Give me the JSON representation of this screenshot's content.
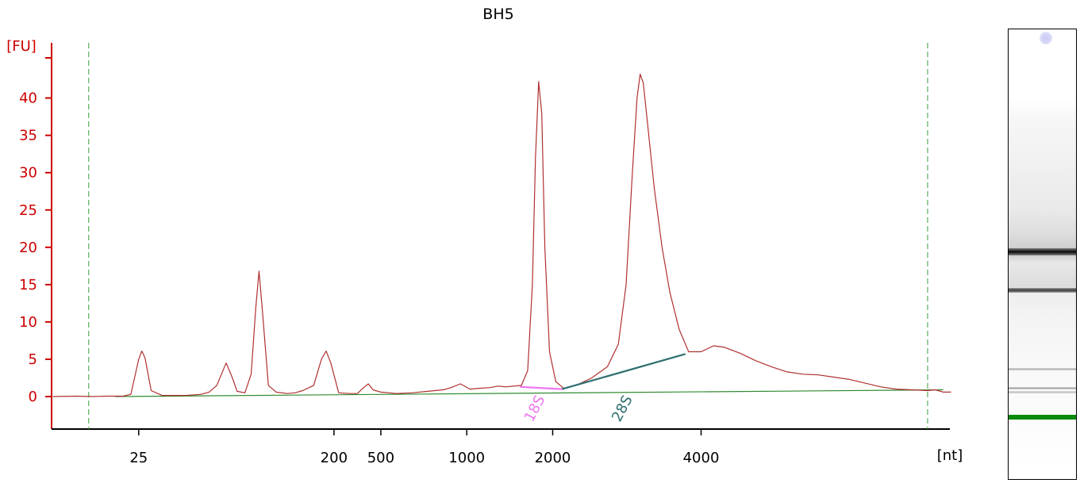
{
  "chart_data": {
    "type": "line",
    "title": "BH5",
    "ylabel": "[FU]",
    "xlabel": "[nt]",
    "ylim": [
      -4,
      48
    ],
    "y_ticks": [
      0,
      5,
      10,
      15,
      20,
      25,
      30,
      35,
      40
    ],
    "x_ticks": [
      {
        "label": "25",
        "t": 25
      },
      {
        "label": "200",
        "t": 37.5
      },
      {
        "label": "500",
        "t": 40.5
      },
      {
        "label": "1000",
        "t": 46
      },
      {
        "label": "2000",
        "t": 51.5
      },
      {
        "label": "4000",
        "t": 61
      }
    ],
    "xlim": [
      19.5,
      77
    ],
    "colors": {
      "trace": "#b03030",
      "axis": "#cc0000",
      "baseline": "#2e8b2e",
      "marker_lines": "#3a9a3a",
      "peak_18S": "#ee77ee",
      "peak_28S": "#2f7070",
      "lane_marker": "#0a8a0a"
    },
    "series": [
      {
        "values": [
          [
            19.5,
            0.0
          ],
          [
            21,
            0.05
          ],
          [
            22,
            0.0
          ],
          [
            23,
            0.05
          ],
          [
            24,
            0.05
          ],
          [
            24.5,
            0.3
          ],
          [
            25,
            5.0
          ],
          [
            25.2,
            6.1
          ],
          [
            25.4,
            5.2
          ],
          [
            25.8,
            0.8
          ],
          [
            26.5,
            0.15
          ],
          [
            28,
            0.15
          ],
          [
            29,
            0.3
          ],
          [
            29.5,
            0.6
          ],
          [
            30,
            1.5
          ],
          [
            30.3,
            3.0
          ],
          [
            30.6,
            4.5
          ],
          [
            31,
            2.5
          ],
          [
            31.3,
            0.7
          ],
          [
            31.8,
            0.5
          ],
          [
            32.2,
            3.0
          ],
          [
            32.5,
            12.0
          ],
          [
            32.7,
            16.8
          ],
          [
            32.9,
            12.0
          ],
          [
            33.3,
            1.5
          ],
          [
            33.8,
            0.6
          ],
          [
            34.5,
            0.4
          ],
          [
            35,
            0.5
          ],
          [
            35.5,
            0.8
          ],
          [
            36.2,
            1.5
          ],
          [
            36.7,
            5.0
          ],
          [
            37,
            6.1
          ],
          [
            37.3,
            4.5
          ],
          [
            37.8,
            0.5
          ],
          [
            38.5,
            0.4
          ],
          [
            39,
            0.4
          ],
          [
            39.4,
            1.2
          ],
          [
            39.7,
            1.7
          ],
          [
            40,
            0.9
          ],
          [
            40.5,
            0.6
          ],
          [
            41.5,
            0.4
          ],
          [
            42.5,
            0.5
          ],
          [
            43.5,
            0.7
          ],
          [
            44.5,
            0.9
          ],
          [
            45,
            1.2
          ],
          [
            45.6,
            1.7
          ],
          [
            46.2,
            1.0
          ],
          [
            46.8,
            1.1
          ],
          [
            47.5,
            1.2
          ],
          [
            48,
            1.4
          ],
          [
            48.5,
            1.3
          ],
          [
            49.5,
            1.5
          ],
          [
            49.9,
            3.5
          ],
          [
            50.2,
            15.0
          ],
          [
            50.4,
            32.0
          ],
          [
            50.6,
            42.2
          ],
          [
            50.8,
            38.0
          ],
          [
            51,
            20.0
          ],
          [
            51.3,
            6.0
          ],
          [
            51.7,
            2.0
          ],
          [
            52.2,
            1.1
          ],
          [
            53,
            1.5
          ],
          [
            54,
            2.5
          ],
          [
            55,
            4.0
          ],
          [
            55.7,
            7.0
          ],
          [
            56.2,
            15.0
          ],
          [
            56.6,
            30.0
          ],
          [
            56.9,
            40.0
          ],
          [
            57.1,
            43.2
          ],
          [
            57.3,
            42.0
          ],
          [
            57.6,
            36.0
          ],
          [
            58,
            28.0
          ],
          [
            58.5,
            20.0
          ],
          [
            59,
            14.0
          ],
          [
            59.6,
            9.0
          ],
          [
            60.2,
            6.0
          ],
          [
            61,
            6.0
          ],
          [
            61.8,
            6.8
          ],
          [
            62.5,
            6.6
          ],
          [
            63.5,
            5.8
          ],
          [
            64.5,
            4.8
          ],
          [
            65.5,
            4.0
          ],
          [
            66.5,
            3.3
          ],
          [
            67.5,
            3.0
          ],
          [
            68.5,
            2.9
          ],
          [
            69.5,
            2.6
          ],
          [
            70.5,
            2.3
          ],
          [
            71.5,
            1.8
          ],
          [
            72.5,
            1.3
          ],
          [
            73.5,
            1.0
          ],
          [
            74.5,
            0.9
          ],
          [
            75.5,
            0.8
          ],
          [
            76,
            0.9
          ],
          [
            76.5,
            0.6
          ],
          [
            77,
            0.6
          ]
        ]
      }
    ],
    "baseline": [
      [
        23.5,
        0.0
      ],
      [
        76.5,
        0.9
      ]
    ],
    "marker_lines_t": [
      21.8,
      75.5
    ],
    "peak_labels": [
      {
        "label": "18S",
        "t": 50.2,
        "segment": [
          [
            49.4,
            1.3
          ],
          [
            52.1,
            1.0
          ]
        ]
      },
      {
        "label": "28S",
        "t": 55.8,
        "segment": [
          [
            52.1,
            1.0
          ],
          [
            60.0,
            5.7
          ]
        ]
      }
    ],
    "lane_bands": [
      {
        "y_frac": 0.487,
        "height_frac": 0.016,
        "opacity": 0.95
      },
      {
        "y_frac": 0.575,
        "height_frac": 0.01,
        "opacity": 0.75
      },
      {
        "y_frac": 0.753,
        "height_frac": 0.005,
        "opacity": 0.3
      },
      {
        "y_frac": 0.795,
        "height_frac": 0.006,
        "opacity": 0.35
      },
      {
        "y_frac": 0.805,
        "height_frac": 0.005,
        "opacity": 0.25
      }
    ],
    "lane_marker_frac": 0.857
  }
}
